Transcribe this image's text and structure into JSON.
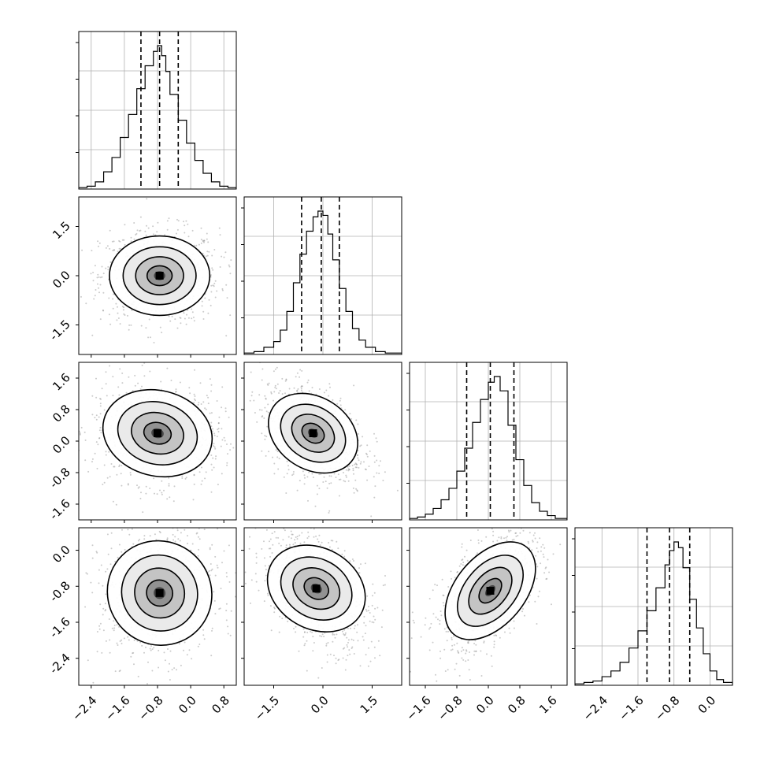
{
  "chart_data": {
    "type": "corner",
    "grid": true,
    "panels": [
      {
        "kind": "hist",
        "row": 0,
        "col": 0,
        "x_range": [
          -2.7,
          1.1
        ],
        "quantiles": [
          -1.2,
          -0.75,
          -0.3
        ],
        "bins": [
          -2.7,
          -2.5,
          -2.3,
          -2.1,
          -1.9,
          -1.7,
          -1.5,
          -1.3,
          -1.1,
          -0.9,
          -0.8,
          -0.7,
          -0.6,
          -0.5,
          -0.3,
          -0.1,
          0.1,
          0.3,
          0.5,
          0.7,
          0.9,
          1.1
        ],
        "counts": [
          0.01,
          0.02,
          0.05,
          0.12,
          0.22,
          0.36,
          0.52,
          0.7,
          0.86,
          0.96,
          1.0,
          0.93,
          0.82,
          0.66,
          0.48,
          0.32,
          0.2,
          0.11,
          0.05,
          0.02,
          0.01
        ]
      },
      {
        "kind": "hist",
        "row": 1,
        "col": 1,
        "x_range": [
          -2.4,
          2.4
        ],
        "quantiles": [
          -0.65,
          -0.05,
          0.5
        ],
        "bins": [
          -2.4,
          -2.1,
          -1.8,
          -1.5,
          -1.3,
          -1.1,
          -0.9,
          -0.7,
          -0.5,
          -0.3,
          -0.15,
          0,
          0.15,
          0.3,
          0.5,
          0.7,
          0.9,
          1.1,
          1.3,
          1.6,
          1.9,
          2.4
        ],
        "counts": [
          0.01,
          0.02,
          0.05,
          0.09,
          0.17,
          0.3,
          0.5,
          0.7,
          0.86,
          0.96,
          1.0,
          0.97,
          0.84,
          0.66,
          0.46,
          0.3,
          0.18,
          0.1,
          0.05,
          0.02,
          0.01
        ]
      },
      {
        "kind": "hist",
        "row": 2,
        "col": 2,
        "x_range": [
          -2.0,
          2.0
        ],
        "quantiles": [
          -0.55,
          0.05,
          0.65
        ],
        "bins": [
          -2.0,
          -1.8,
          -1.6,
          -1.4,
          -1.2,
          -1.0,
          -0.8,
          -0.6,
          -0.4,
          -0.2,
          0,
          0.15,
          0.3,
          0.5,
          0.7,
          0.9,
          1.1,
          1.3,
          1.5,
          1.7,
          2.0
        ],
        "counts": [
          0.01,
          0.02,
          0.04,
          0.08,
          0.14,
          0.22,
          0.34,
          0.5,
          0.68,
          0.84,
          0.96,
          1.0,
          0.9,
          0.66,
          0.42,
          0.24,
          0.12,
          0.06,
          0.03,
          0.01
        ]
      },
      {
        "kind": "hist",
        "row": 3,
        "col": 3,
        "x_range": [
          -3.0,
          0.5
        ],
        "quantiles": [
          -1.4,
          -0.9,
          -0.45
        ],
        "bins": [
          -3.0,
          -2.8,
          -2.6,
          -2.4,
          -2.2,
          -2.0,
          -1.8,
          -1.6,
          -1.4,
          -1.2,
          -1.0,
          -0.9,
          -0.8,
          -0.7,
          -0.6,
          -0.45,
          -0.3,
          -0.15,
          0,
          0.15,
          0.3,
          0.5
        ],
        "counts": [
          0.01,
          0.02,
          0.03,
          0.06,
          0.1,
          0.16,
          0.26,
          0.38,
          0.52,
          0.68,
          0.84,
          0.94,
          1.0,
          0.96,
          0.82,
          0.6,
          0.4,
          0.22,
          0.1,
          0.04,
          0.02
        ]
      },
      {
        "kind": "2d",
        "row": 1,
        "col": 0,
        "x_range": [
          -2.7,
          1.1
        ],
        "y_range": [
          -2.4,
          2.4
        ],
        "center": [
          -0.75,
          0.0
        ],
        "sigma": [
          0.55,
          0.55
        ],
        "rho": 0.0
      },
      {
        "kind": "2d",
        "row": 2,
        "col": 0,
        "x_range": [
          -2.7,
          1.1
        ],
        "y_range": [
          -2.0,
          2.0
        ],
        "center": [
          -0.8,
          0.2
        ],
        "sigma": [
          0.6,
          0.5
        ],
        "rho": -0.1
      },
      {
        "kind": "2d",
        "row": 2,
        "col": 1,
        "x_range": [
          -2.4,
          2.4
        ],
        "y_range": [
          -2.0,
          2.0
        ],
        "center": [
          -0.3,
          0.2
        ],
        "sigma": [
          0.6,
          0.5
        ],
        "rho": -0.4
      },
      {
        "kind": "2d",
        "row": 3,
        "col": 0,
        "x_range": [
          -2.7,
          1.1
        ],
        "y_range": [
          -3.0,
          0.5
        ],
        "center": [
          -0.75,
          -0.95
        ],
        "sigma": [
          0.55,
          0.55
        ],
        "rho": 0.05
      },
      {
        "kind": "2d",
        "row": 3,
        "col": 1,
        "x_range": [
          -2.4,
          2.4
        ],
        "y_range": [
          -3.0,
          0.5
        ],
        "center": [
          -0.2,
          -0.85
        ],
        "sigma": [
          0.65,
          0.5
        ],
        "rho": -0.45
      },
      {
        "kind": "2d",
        "row": 3,
        "col": 2,
        "x_range": [
          -2.0,
          2.0
        ],
        "y_range": [
          -3.0,
          0.5
        ],
        "center": [
          0.05,
          -0.9
        ],
        "sigma": [
          0.5,
          0.55
        ],
        "rho": 0.55
      }
    ],
    "y_ticks": {
      "row1": [
        "1.5",
        "0.0",
        "-1.5"
      ],
      "row2": [
        "1.6",
        "0.8",
        "0.0",
        "-0.8",
        "-1.6"
      ],
      "row3": [
        "0.0",
        "-0.8",
        "-1.6",
        "-2.4"
      ]
    },
    "x_ticks": {
      "col0": [
        "-2.4",
        "-1.6",
        "-0.8",
        "0.0",
        "0.8"
      ],
      "col1": [
        "-1.5",
        "0.0",
        "1.5"
      ],
      "col2": [
        "-1.6",
        "-0.8",
        "0.0",
        "0.8",
        "1.6"
      ],
      "col3": [
        "-2.4",
        "-1.6",
        "-0.8",
        "0.0"
      ]
    },
    "tick_values": {
      "row1": [
        1.5,
        0.0,
        -1.5
      ],
      "row2": [
        1.6,
        0.8,
        0.0,
        -0.8,
        -1.6
      ],
      "row3": [
        0.0,
        -0.8,
        -1.6,
        -2.4
      ],
      "col0": [
        -2.4,
        -1.6,
        -0.8,
        0.0,
        0.8
      ],
      "col1": [
        -1.5,
        0.0,
        1.5
      ],
      "col2": [
        -1.6,
        -0.8,
        0.0,
        0.8,
        1.6
      ],
      "col3": [
        -2.4,
        -1.6,
        -0.8,
        0.0
      ]
    }
  }
}
